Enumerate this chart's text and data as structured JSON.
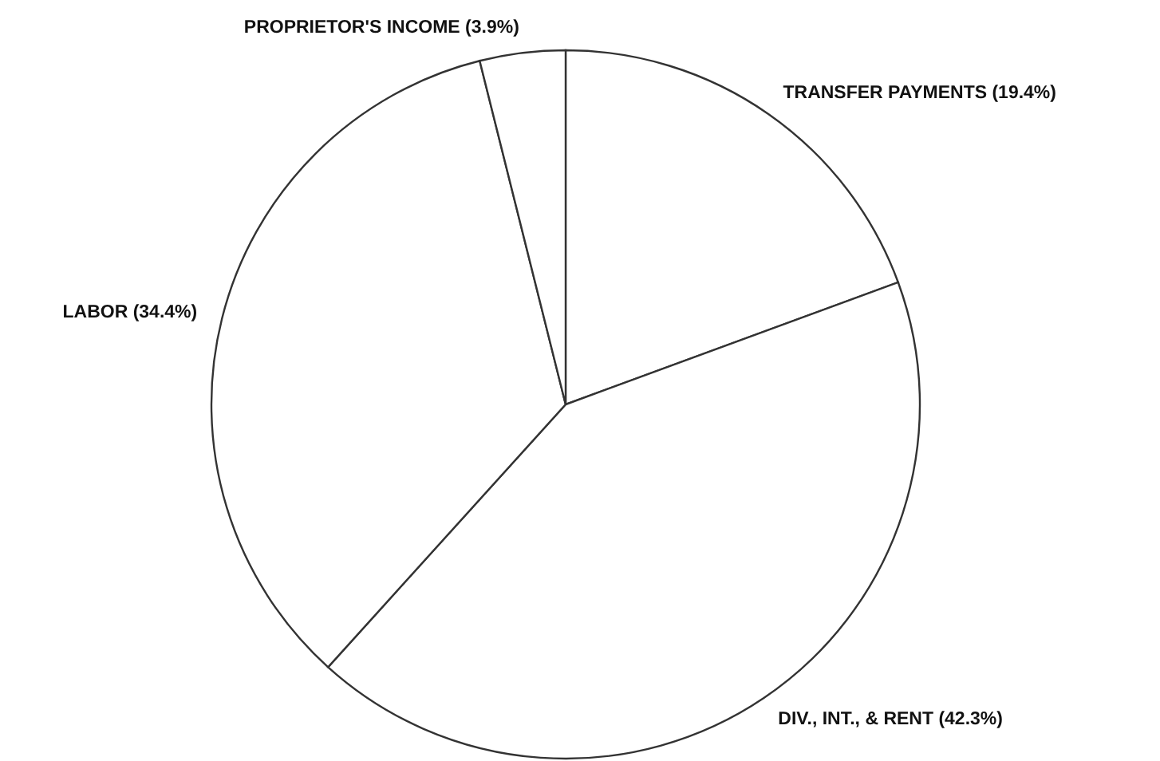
{
  "chart_data": {
    "type": "pie",
    "categories": [
      "TRANSFER PAYMENTS",
      "DIV., INT., & RENT",
      "LABOR",
      "PROPRIETOR'S INCOME"
    ],
    "values": [
      19.4,
      42.3,
      34.4,
      3.9
    ],
    "value_labels": [
      "(19.4%)",
      "(42.3%)",
      "(34.4%)",
      "(3.9%)"
    ],
    "colors": [
      "#ffffff",
      "#ffffff",
      "#ffffff",
      "#ffffff"
    ]
  }
}
